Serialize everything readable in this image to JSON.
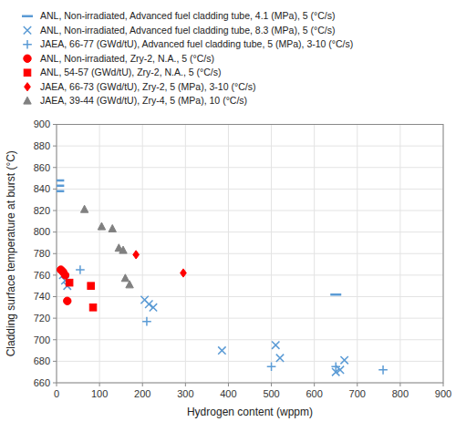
{
  "chart_data": {
    "type": "scatter",
    "xlabel": "Hydrogen content (wppm)",
    "ylabel": "Cladding surface temperature at burst (°C)",
    "xlim": [
      0,
      900
    ],
    "ylim": [
      660,
      900
    ],
    "xticks": [
      0,
      100,
      200,
      300,
      400,
      500,
      600,
      700,
      800,
      900
    ],
    "yticks": [
      660,
      680,
      700,
      720,
      740,
      760,
      780,
      800,
      820,
      840,
      860,
      880,
      900
    ],
    "grid": true,
    "legend": "top",
    "series": [
      {
        "name": "ANL, Non-irradiated, Advanced fuel cladding tube, 4.1 (MPa), 5 (°C/s)",
        "color": "#5b9bd5",
        "marker": "dash",
        "x": [
          5,
          5,
          5,
          650
        ],
        "values": [
          848,
          843,
          838,
          742
        ]
      },
      {
        "name": "ANL, Non-irradiated, Advanced fuel cladding tube, 8.3 (MPa), 5 (°C/s)",
        "color": "#5b9bd5",
        "marker": "x",
        "x": [
          15,
          20,
          25,
          205,
          215,
          225,
          385,
          510,
          520,
          650,
          660,
          670
        ],
        "values": [
          760,
          755,
          750,
          737,
          733,
          730,
          690,
          695,
          683,
          670,
          672,
          681
        ]
      },
      {
        "name": "JAEA, 66-77 (GWd/tU), Advanced fuel cladding tube, 5 (MPa), 3-10 (°C/s)",
        "color": "#5b9bd5",
        "marker": "plus",
        "x": [
          55,
          210,
          500,
          650,
          760
        ],
        "values": [
          765,
          717,
          675,
          675,
          672
        ]
      },
      {
        "name": "ANL, Non-irradiated, Zry-2, N.A., 5 (°C/s)",
        "color": "#ff0000",
        "marker": "circle",
        "x": [
          10,
          15,
          20,
          25
        ],
        "values": [
          765,
          763,
          760,
          736
        ]
      },
      {
        "name": "ANL, 54-57 (GWd/tU), Zry-2, N.A., 5 (°C/s)",
        "color": "#ff0000",
        "marker": "square",
        "x": [
          30,
          80,
          85
        ],
        "values": [
          753,
          750,
          730
        ]
      },
      {
        "name": "JAEA, 66-73 (GWd/tU), Zry-2, 5 (MPa), 3-10 (°C/s)",
        "color": "#ff0000",
        "marker": "diamond",
        "x": [
          185,
          295
        ],
        "values": [
          779,
          762
        ]
      },
      {
        "name": "JAEA, 39-44 (GWd/tU), Zry-4, 5 (MPa), 10 (°C/s)",
        "color": "#808080",
        "marker": "triangle",
        "x": [
          65,
          105,
          130,
          145,
          155,
          160,
          170
        ],
        "values": [
          821,
          805,
          803,
          785,
          783,
          757,
          751
        ]
      }
    ]
  }
}
